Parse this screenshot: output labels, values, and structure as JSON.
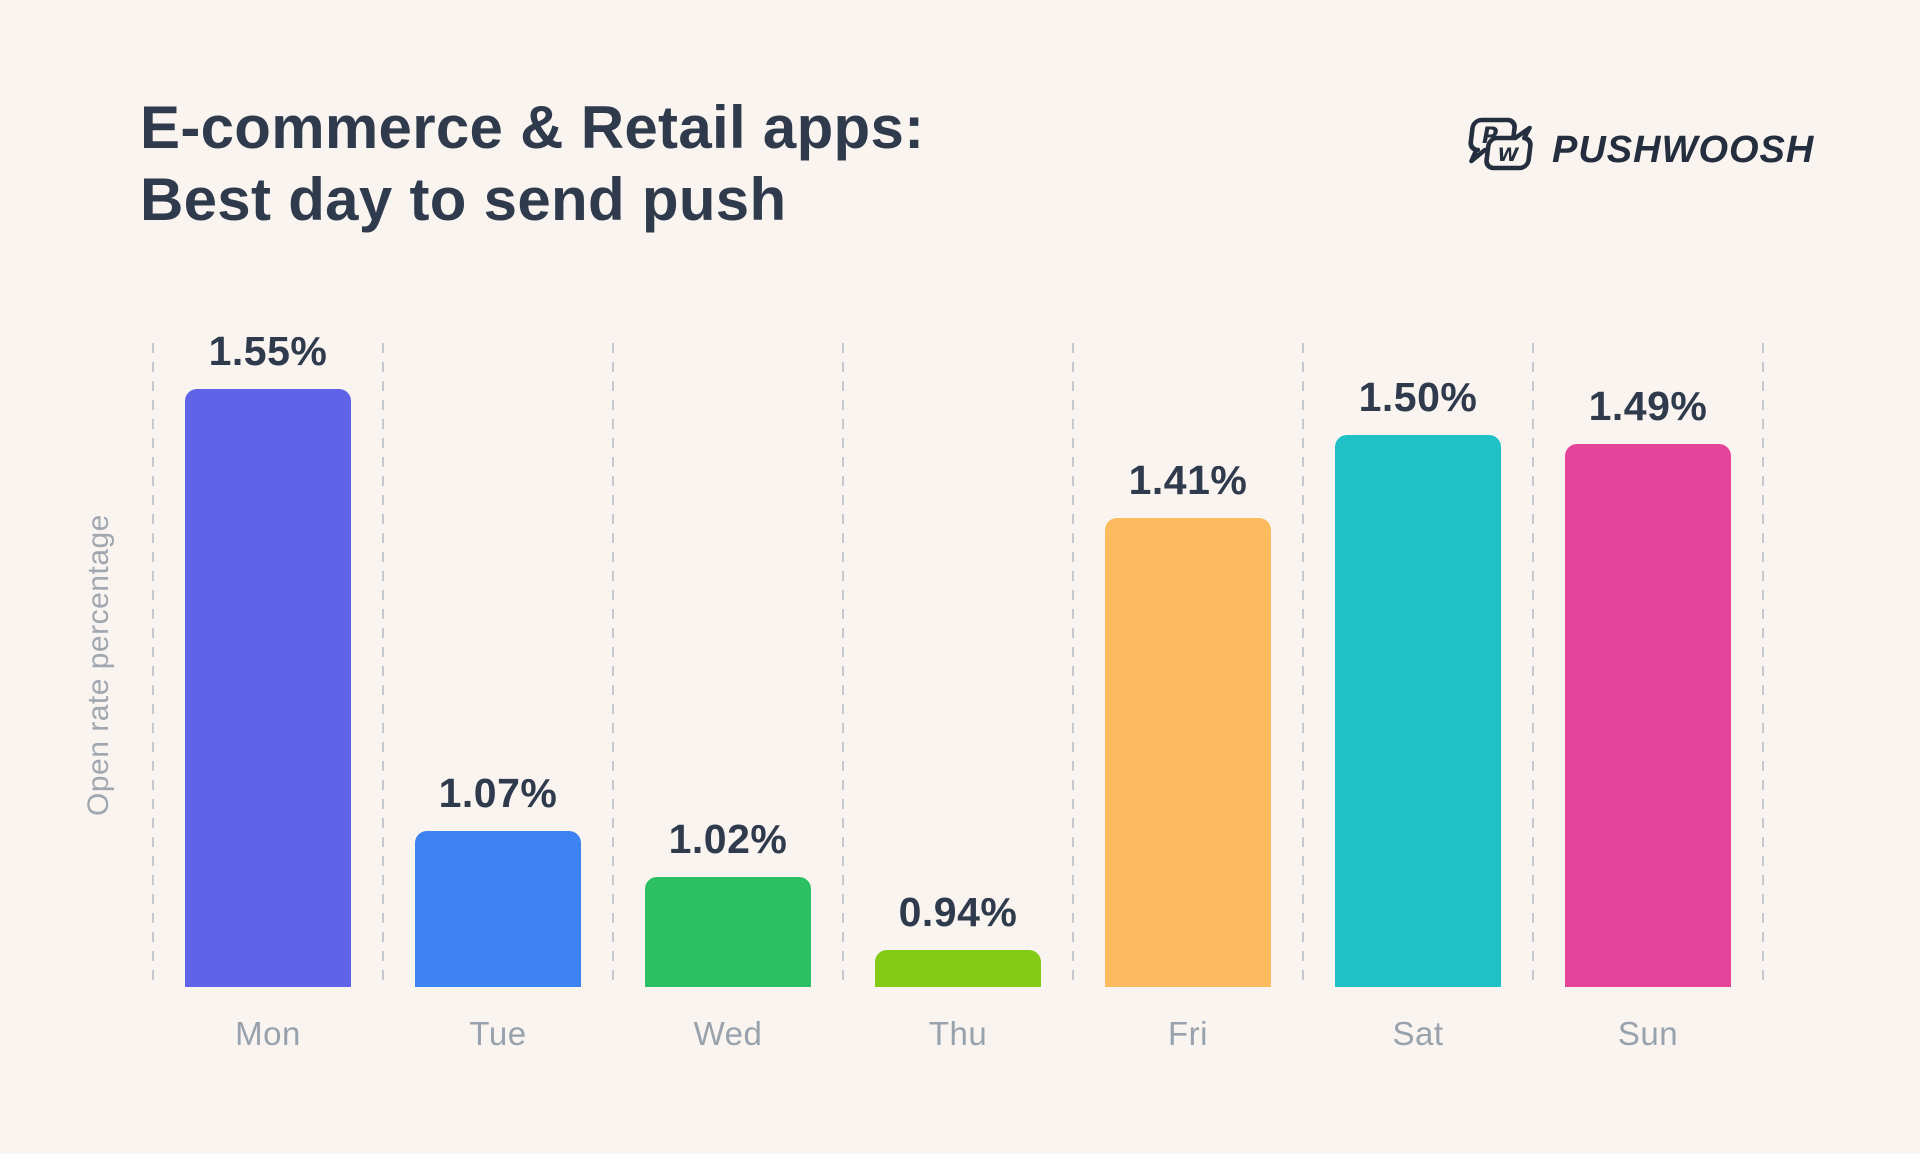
{
  "header": {
    "title_line1": "E-commerce & Retail apps:",
    "title_line2": "Best day to send push",
    "brand": "PUSHWOOSH",
    "logo_letters": {
      "first": "P",
      "second": "W"
    }
  },
  "chart_data": {
    "type": "bar",
    "title": "E-commerce & Retail apps: Best day to send push",
    "xlabel": "",
    "ylabel": "Open rate percentage",
    "categories": [
      "Mon",
      "Tue",
      "Wed",
      "Thu",
      "Fri",
      "Sat",
      "Sun"
    ],
    "values": [
      1.55,
      1.07,
      1.02,
      0.94,
      1.41,
      1.5,
      1.49
    ],
    "value_labels": [
      "1.55%",
      "1.07%",
      "1.02%",
      "0.94%",
      "1.41%",
      "1.50%",
      "1.49%"
    ],
    "bar_colors": [
      "#5e63e8",
      "#3c83f1",
      "#2bc062",
      "#84cb17",
      "#fdba5f",
      "#1fc0c6",
      "#e4459a"
    ],
    "ylim": [
      0.9,
      1.6
    ],
    "grid": "vertical-dashed",
    "legend": "none",
    "value_label_position": "above-bar"
  },
  "colors": {
    "background": "#f9f4ef",
    "title_text": "#2f3b4d",
    "value_label_text": "#2f3b4d",
    "axis_label_text": "#a0a7b0",
    "tick_label_text": "#98a2ad",
    "gridline": "#c4c9d1",
    "logo": "#242e3e"
  }
}
